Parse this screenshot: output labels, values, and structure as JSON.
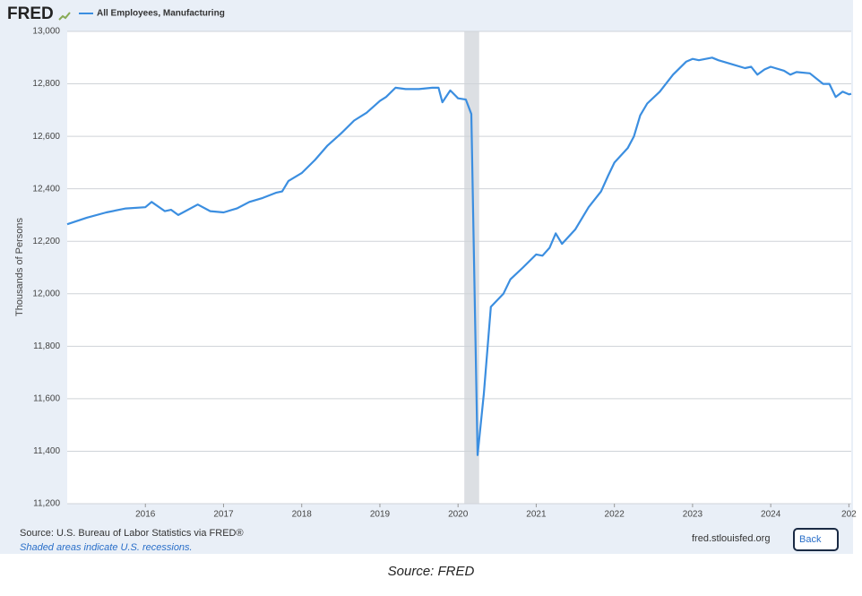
{
  "header": {
    "logo": "FRED"
  },
  "chart_data": {
    "type": "line",
    "y_label": "Thousands of Persons",
    "x": [
      2015.0,
      2015.25,
      2015.5,
      2015.75,
      2016.0,
      2016.08,
      2016.25,
      2016.33,
      2016.42,
      2016.67,
      2016.83,
      2017.0,
      2017.17,
      2017.33,
      2017.5,
      2017.67,
      2017.75,
      2017.83,
      2018.0,
      2018.17,
      2018.33,
      2018.5,
      2018.67,
      2018.83,
      2019.0,
      2019.08,
      2019.2,
      2019.33,
      2019.5,
      2019.67,
      2019.75,
      2019.8,
      2019.9,
      2020.0,
      2020.1,
      2020.17,
      2020.25,
      2020.33,
      2020.42,
      2020.58,
      2020.67,
      2020.83,
      2021.0,
      2021.08,
      2021.17,
      2021.25,
      2021.33,
      2021.5,
      2021.67,
      2021.83,
      2021.92,
      2022.0,
      2022.17,
      2022.25,
      2022.33,
      2022.42,
      2022.58,
      2022.75,
      2022.92,
      2023.0,
      2023.08,
      2023.25,
      2023.33,
      2023.5,
      2023.67,
      2023.75,
      2023.83,
      2023.92,
      2024.0,
      2024.17,
      2024.25,
      2024.33,
      2024.5,
      2024.67,
      2024.75,
      2024.83,
      2024.92,
      2025.0,
      2025.03
    ],
    "series": [
      {
        "name": "All Employees, Manufacturing",
        "color": "#3b8ee0",
        "values": [
          12265,
          12290,
          12310,
          12325,
          12330,
          12350,
          12315,
          12320,
          12300,
          12340,
          12315,
          12310,
          12325,
          12350,
          12365,
          12385,
          12390,
          12430,
          12460,
          12510,
          12565,
          12610,
          12660,
          12690,
          12735,
          12750,
          12785,
          12780,
          12780,
          12785,
          12785,
          12730,
          12775,
          12745,
          12740,
          12685,
          11385,
          11620,
          11950,
          12000,
          12055,
          12100,
          12150,
          12145,
          12175,
          12230,
          12190,
          12245,
          12330,
          12390,
          12450,
          12500,
          12555,
          12600,
          12680,
          12725,
          12770,
          12835,
          12885,
          12895,
          12890,
          12900,
          12890,
          12875,
          12860,
          12865,
          12835,
          12855,
          12865,
          12850,
          12835,
          12845,
          12840,
          12800,
          12800,
          12750,
          12770,
          12760,
          12762
        ]
      }
    ],
    "recessions": [
      [
        2020.08,
        2020.27
      ]
    ],
    "xlim": [
      2015.0,
      2025.03
    ],
    "xticks": [
      2016,
      2017,
      2018,
      2019,
      2020,
      2021,
      2022,
      2023,
      2024,
      {
        "value": 2025,
        "label": "202"
      }
    ],
    "ylim": [
      11200,
      13000
    ],
    "yticks": [
      {
        "value": 11200,
        "label": "11,200"
      },
      {
        "value": 11400,
        "label": "11,400"
      },
      {
        "value": 11600,
        "label": "11,600"
      },
      {
        "value": 11800,
        "label": "11,800"
      },
      {
        "value": 12000,
        "label": "12,000"
      },
      {
        "value": 12200,
        "label": "12,200"
      },
      {
        "value": 12400,
        "label": "12,400"
      },
      {
        "value": 12600,
        "label": "12,600"
      },
      {
        "value": 12800,
        "label": "12,800"
      },
      {
        "value": 13000,
        "label": "13,000"
      }
    ],
    "grid": true
  },
  "footer": {
    "source": "Source: U.S. Bureau of Labor Statistics via FRED®",
    "note": "Shaded areas indicate U.S. recessions.",
    "url": "fred.stlouisfed.org",
    "button": "Back"
  },
  "caption": "Source: FRED"
}
